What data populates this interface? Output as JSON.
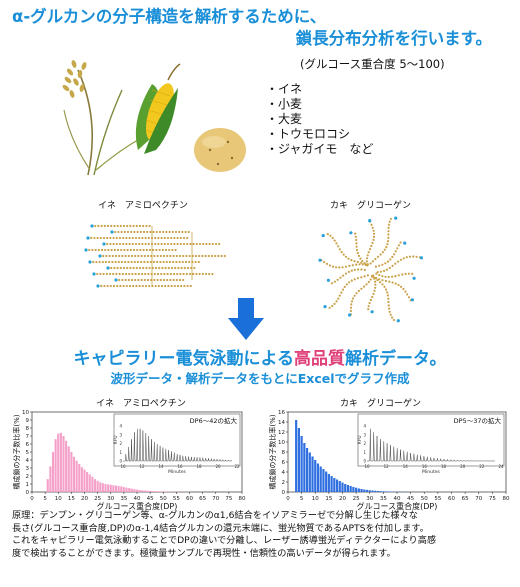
{
  "header": {
    "title_line1": "α-グルカンの分子構造を解析するために、",
    "title_line2": "鎖長分布分析を行います。",
    "dp_range": "(グルコース重合度 5〜100)"
  },
  "sources": [
    "・イネ",
    "・小麦",
    "・大麦",
    "・トウモロコシ",
    "・ジャガイモ　など"
  ],
  "molecules": {
    "left_label": "イネ　アミロペクチン",
    "right_label": "カキ　グリコーゲン"
  },
  "result": {
    "headline_part1": "キャピラリー電気泳動による",
    "headline_highlight": "高品質",
    "headline_part2": "解析データ。",
    "subline": "波形データ・解析データをもとにExcelでグラフ作成"
  },
  "colors": {
    "accent_blue": "#1a8fd8",
    "highlight_pink": "#e0407a",
    "bar_pink": "#f5a0c8",
    "bar_blue": "#2f6fe0"
  },
  "chart_data": [
    {
      "type": "bar",
      "title": "イネ　アミロペクチン",
      "xlabel": "グルコース重合度(DP)",
      "ylabel": "構成鎖の分子数比率(%)",
      "xlim": [
        0,
        80
      ],
      "ylim": [
        0,
        10
      ],
      "x_ticks": [
        0,
        5,
        10,
        15,
        20,
        25,
        30,
        35,
        40,
        45,
        50,
        55,
        60,
        65,
        70,
        75,
        80
      ],
      "y_ticks": [
        0,
        1,
        2,
        3,
        4,
        5,
        6,
        7,
        8,
        9,
        10
      ],
      "x": [
        6,
        7,
        8,
        9,
        10,
        11,
        12,
        13,
        14,
        15,
        16,
        17,
        18,
        19,
        20,
        21,
        22,
        23,
        24,
        25,
        26,
        27,
        28,
        29,
        30,
        31,
        32,
        33,
        34,
        35,
        36,
        37,
        38,
        39,
        40,
        41,
        42,
        43,
        44,
        45,
        46,
        47,
        48,
        49,
        50,
        51,
        52,
        53,
        54,
        55,
        56,
        57,
        58,
        59,
        60
      ],
      "values": [
        1.6,
        3.2,
        5.0,
        6.6,
        7.3,
        7.4,
        7.0,
        6.4,
        5.7,
        5.0,
        4.4,
        3.9,
        3.5,
        3.1,
        2.8,
        2.5,
        2.2,
        1.9,
        1.6,
        1.4,
        1.2,
        1.1,
        1.0,
        0.95,
        0.9,
        0.85,
        0.8,
        0.75,
        0.7,
        0.62,
        0.55,
        0.48,
        0.42,
        0.36,
        0.3,
        0.26,
        0.22,
        0.19,
        0.16,
        0.14,
        0.12,
        0.1,
        0.09,
        0.08,
        0.07,
        0.06,
        0.05,
        0.05,
        0.04,
        0.04,
        0.03,
        0.03,
        0.02,
        0.02,
        0.02
      ],
      "inset": {
        "label": "DP6〜42の拡大",
        "ylabel": "RFU",
        "xlabel": "Minutes",
        "y_ticks": [
          0,
          1,
          2,
          3,
          4
        ],
        "x_ticks": [
          10,
          12,
          14,
          16,
          18,
          20,
          22
        ]
      }
    },
    {
      "type": "bar",
      "title": "カキ　グリコーゲン",
      "xlabel": "グルコース重合度(DP)",
      "ylabel": "構成鎖の分子数比率(%)",
      "xlim": [
        0,
        80
      ],
      "ylim": [
        0,
        16
      ],
      "x_ticks": [
        0,
        5,
        10,
        15,
        20,
        25,
        30,
        35,
        40,
        45,
        50,
        55,
        60,
        65,
        70,
        75,
        80
      ],
      "y_ticks": [
        0,
        2,
        4,
        6,
        8,
        10,
        12,
        14,
        16
      ],
      "x": [
        3,
        4,
        5,
        6,
        7,
        8,
        9,
        10,
        11,
        12,
        13,
        14,
        15,
        16,
        17,
        18,
        19,
        20,
        21,
        22,
        23,
        24,
        25,
        26,
        27,
        28,
        29,
        30,
        31,
        32,
        33,
        34,
        35,
        36,
        37,
        38,
        39,
        40,
        41,
        42,
        43,
        44,
        45
      ],
      "values": [
        14.4,
        12.8,
        11.2,
        9.8,
        8.8,
        7.9,
        7.1,
        6.4,
        5.7,
        5.1,
        4.6,
        4.1,
        3.6,
        3.2,
        2.8,
        2.5,
        2.2,
        1.9,
        1.6,
        1.4,
        1.2,
        1.0,
        0.85,
        0.7,
        0.6,
        0.5,
        0.42,
        0.35,
        0.3,
        0.25,
        0.2,
        0.17,
        0.14,
        0.12,
        0.1,
        0.08,
        0.07,
        0.06,
        0.05,
        0.04,
        0.03,
        0.02,
        0.02
      ],
      "inset": {
        "label": "DP5〜37の拡大",
        "ylabel": "RFU",
        "xlabel": "Minutes",
        "y_ticks": [
          0,
          1,
          2,
          3,
          4
        ],
        "x_ticks": [
          10,
          12,
          14,
          16,
          18,
          20,
          22,
          24
        ]
      }
    }
  ],
  "footnote": [
    "原理：デンプン・グリコーゲン等、α-グルカンのα1,6結合をイソアミラーゼで分解し生じた様々な",
    "長さ(グルコース重合度,DP)のα-1,4結合グルカンの還元末端に、蛍光物質であるAPTSを付加します。",
    "これをキャピラリー電気泳動することでDPの違いで分離し、レーザー誘導蛍光ディテクターにより高感",
    "度で検出することができます。極微量サンプルで再現性・信頼性の高いデータが得られます。"
  ]
}
